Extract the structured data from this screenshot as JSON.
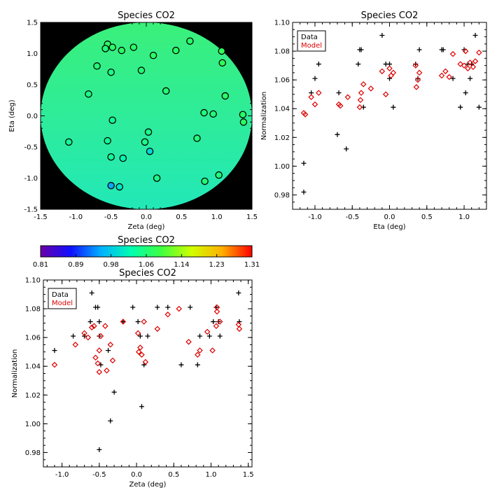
{
  "chart_data": [
    {
      "type": "scatter",
      "title": "Species CO2",
      "xlabel": "Zeta (deg)",
      "ylabel": "Eta (deg)",
      "xlim": [
        -1.5,
        1.5
      ],
      "ylim": [
        -1.5,
        1.5
      ],
      "xticks": [
        "-1.5",
        "-1.0",
        "-0.5",
        "0.0",
        "0.5",
        "1.0",
        "1.5"
      ],
      "yticks": [
        "-1.5",
        "-1.0",
        "-0.5",
        "0.0",
        "0.5",
        "1.0",
        "1.5"
      ],
      "background": "#000000",
      "field": {
        "shape": "circle",
        "radius_deg": 1.5,
        "color_top": "#3af07a",
        "color_bottom": "#22e8b8"
      },
      "points": [
        {
          "x": -0.55,
          "y": 1.15,
          "v": 1.07
        },
        {
          "x": -0.48,
          "y": 1.1,
          "v": 1.07
        },
        {
          "x": -0.58,
          "y": 1.08,
          "v": 1.06
        },
        {
          "x": -0.35,
          "y": 1.05,
          "v": 1.07
        },
        {
          "x": -0.18,
          "y": 1.1,
          "v": 1.07
        },
        {
          "x": 0.1,
          "y": 0.97,
          "v": 1.07
        },
        {
          "x": 0.42,
          "y": 1.05,
          "v": 1.07
        },
        {
          "x": 0.62,
          "y": 1.2,
          "v": 1.07
        },
        {
          "x": 1.07,
          "y": 1.04,
          "v": 1.08
        },
        {
          "x": 1.08,
          "y": 0.85,
          "v": 1.08
        },
        {
          "x": -0.7,
          "y": 0.8,
          "v": 1.06
        },
        {
          "x": -0.5,
          "y": 0.7,
          "v": 1.05
        },
        {
          "x": -0.07,
          "y": 0.73,
          "v": 1.06
        },
        {
          "x": 1.12,
          "y": 0.32,
          "v": 1.07
        },
        {
          "x": -0.82,
          "y": 0.35,
          "v": 1.05
        },
        {
          "x": 0.28,
          "y": 0.4,
          "v": 1.06
        },
        {
          "x": 0.82,
          "y": 0.05,
          "v": 1.06
        },
        {
          "x": 0.95,
          "y": 0.03,
          "v": 1.06
        },
        {
          "x": 1.37,
          "y": 0.02,
          "v": 1.07
        },
        {
          "x": 1.38,
          "y": -0.1,
          "v": 1.07
        },
        {
          "x": -0.48,
          "y": -0.07,
          "v": 1.04
        },
        {
          "x": 0.03,
          "y": -0.26,
          "v": 1.05
        },
        {
          "x": -1.1,
          "y": -0.42,
          "v": 1.04
        },
        {
          "x": -0.55,
          "y": -0.4,
          "v": 1.04
        },
        {
          "x": -0.02,
          "y": -0.42,
          "v": 1.05
        },
        {
          "x": 0.72,
          "y": -0.36,
          "v": 1.06
        },
        {
          "x": 0.05,
          "y": -0.57,
          "v": 0.99
        },
        {
          "x": -0.5,
          "y": -0.66,
          "v": 1.04
        },
        {
          "x": -0.33,
          "y": -0.68,
          "v": 1.02
        },
        {
          "x": 0.15,
          "y": -1.0,
          "v": 1.05
        },
        {
          "x": 0.83,
          "y": -1.05,
          "v": 1.06
        },
        {
          "x": 1.03,
          "y": -0.95,
          "v": 1.06
        },
        {
          "x": -0.5,
          "y": -1.12,
          "v": 0.95
        },
        {
          "x": -0.38,
          "y": -1.14,
          "v": 1.0
        }
      ]
    },
    {
      "type": "scatter",
      "title": "Species CO2",
      "xlabel": "Eta (deg)",
      "ylabel": "Normalization",
      "xlim": [
        -1.3,
        1.3
      ],
      "ylim": [
        0.97,
        1.1
      ],
      "xticks": [
        "-1.0",
        "-0.5",
        "0.0",
        "0.5",
        "1.0"
      ],
      "yticks": [
        "0.98",
        "1.00",
        "1.02",
        "1.04",
        "1.06",
        "1.08",
        "1.10"
      ],
      "legend_position": "top-left",
      "series": [
        {
          "name": "Data",
          "marker": "plus",
          "color": "#000000",
          "points": [
            [
              -1.15,
              0.982
            ],
            [
              -1.15,
              1.002
            ],
            [
              -1.05,
              1.051
            ],
            [
              -1.0,
              1.061
            ],
            [
              -0.95,
              1.071
            ],
            [
              -0.7,
              1.022
            ],
            [
              -0.68,
              1.051
            ],
            [
              -0.58,
              1.012
            ],
            [
              -0.42,
              1.071
            ],
            [
              -0.4,
              1.081
            ],
            [
              -0.38,
              1.081
            ],
            [
              -0.35,
              1.041
            ],
            [
              -0.1,
              1.091
            ],
            [
              -0.05,
              1.071
            ],
            [
              0.0,
              1.071
            ],
            [
              0.0,
              1.061
            ],
            [
              0.05,
              1.041
            ],
            [
              0.35,
              1.071
            ],
            [
              0.38,
              1.061
            ],
            [
              0.4,
              1.081
            ],
            [
              0.7,
              1.081
            ],
            [
              0.72,
              1.081
            ],
            [
              0.85,
              1.061
            ],
            [
              0.95,
              1.041
            ],
            [
              1.0,
              1.081
            ],
            [
              1.02,
              1.051
            ],
            [
              1.05,
              1.071
            ],
            [
              1.08,
              1.061
            ],
            [
              1.1,
              1.071
            ],
            [
              1.15,
              1.091
            ],
            [
              1.2,
              1.041
            ]
          ]
        },
        {
          "name": "Model",
          "marker": "diamond",
          "color": "#dd0000",
          "points": [
            [
              -1.15,
              1.037
            ],
            [
              -1.13,
              1.036
            ],
            [
              -1.05,
              1.048
            ],
            [
              -1.0,
              1.043
            ],
            [
              -0.95,
              1.051
            ],
            [
              -0.68,
              1.043
            ],
            [
              -0.66,
              1.042
            ],
            [
              -0.56,
              1.048
            ],
            [
              -0.4,
              1.041
            ],
            [
              -0.39,
              1.046
            ],
            [
              -0.38,
              1.051
            ],
            [
              -0.35,
              1.057
            ],
            [
              -0.25,
              1.054
            ],
            [
              -0.1,
              1.066
            ],
            [
              -0.05,
              1.05
            ],
            [
              0.0,
              1.068
            ],
            [
              0.02,
              1.063
            ],
            [
              0.05,
              1.065
            ],
            [
              0.35,
              1.07
            ],
            [
              0.36,
              1.055
            ],
            [
              0.38,
              1.06
            ],
            [
              0.4,
              1.065
            ],
            [
              0.7,
              1.063
            ],
            [
              0.75,
              1.066
            ],
            [
              0.8,
              1.062
            ],
            [
              0.85,
              1.078
            ],
            [
              0.95,
              1.071
            ],
            [
              1.0,
              1.07
            ],
            [
              1.02,
              1.08
            ],
            [
              1.05,
              1.068
            ],
            [
              1.08,
              1.072
            ],
            [
              1.12,
              1.069
            ],
            [
              1.15,
              1.073
            ],
            [
              1.2,
              1.079
            ]
          ]
        }
      ]
    },
    {
      "type": "colorbar",
      "title": "Species CO2",
      "range": [
        0.81,
        1.31
      ],
      "tick_labels": [
        "0.81",
        "0.89",
        "0.98",
        "1.06",
        "1.14",
        "1.23",
        "1.31"
      ],
      "colormap": [
        "#6a00a8",
        "#1010ff",
        "#00b0ff",
        "#00ffb0",
        "#40ff40",
        "#d0ff00",
        "#ffb000",
        "#ff0000"
      ]
    },
    {
      "type": "scatter",
      "title": "Species CO2",
      "xlabel": "Zeta (deg)",
      "ylabel": "Normalization",
      "xlim": [
        -1.25,
        1.55
      ],
      "ylim": [
        0.97,
        1.1
      ],
      "xticks": [
        "-1.0",
        "-0.5",
        "0.0",
        "0.5",
        "1.0",
        "1.5"
      ],
      "yticks": [
        "0.98",
        "1.00",
        "1.02",
        "1.04",
        "1.06",
        "1.08",
        "1.10"
      ],
      "legend_position": "top-left",
      "series": [
        {
          "name": "Data",
          "marker": "plus",
          "color": "#000000",
          "points": [
            [
              -1.1,
              1.051
            ],
            [
              -0.85,
              1.061
            ],
            [
              -0.7,
              1.061
            ],
            [
              -0.62,
              1.071
            ],
            [
              -0.6,
              1.091
            ],
            [
              -0.55,
              1.081
            ],
            [
              -0.52,
              1.081
            ],
            [
              -0.5,
              1.071
            ],
            [
              -0.5,
              1.061
            ],
            [
              -0.48,
              1.041
            ],
            [
              -0.5,
              0.982
            ],
            [
              -0.38,
              1.051
            ],
            [
              -0.35,
              1.002
            ],
            [
              -0.3,
              1.022
            ],
            [
              -0.18,
              1.071
            ],
            [
              -0.05,
              1.081
            ],
            [
              0.02,
              1.071
            ],
            [
              0.05,
              1.061
            ],
            [
              0.07,
              1.012
            ],
            [
              0.1,
              1.041
            ],
            [
              0.15,
              1.061
            ],
            [
              0.28,
              1.081
            ],
            [
              0.42,
              1.081
            ],
            [
              0.6,
              1.041
            ],
            [
              0.72,
              1.081
            ],
            [
              0.82,
              1.041
            ],
            [
              0.85,
              1.061
            ],
            [
              0.98,
              1.061
            ],
            [
              1.03,
              1.071
            ],
            [
              1.07,
              1.081
            ],
            [
              1.1,
              1.071
            ],
            [
              1.12,
              1.061
            ],
            [
              1.37,
              1.091
            ],
            [
              1.38,
              1.071
            ]
          ]
        },
        {
          "name": "Model",
          "marker": "diamond",
          "color": "#dd0000",
          "points": [
            [
              -1.1,
              1.041
            ],
            [
              -0.82,
              1.055
            ],
            [
              -0.7,
              1.063
            ],
            [
              -0.65,
              1.06
            ],
            [
              -0.6,
              1.067
            ],
            [
              -0.57,
              1.068
            ],
            [
              -0.55,
              1.046
            ],
            [
              -0.52,
              1.042
            ],
            [
              -0.5,
              1.051
            ],
            [
              -0.5,
              1.036
            ],
            [
              -0.48,
              1.061
            ],
            [
              -0.42,
              1.068
            ],
            [
              -0.4,
              1.037
            ],
            [
              -0.35,
              1.055
            ],
            [
              -0.32,
              1.044
            ],
            [
              -0.18,
              1.071
            ],
            [
              0.02,
              1.063
            ],
            [
              0.03,
              1.05
            ],
            [
              0.05,
              1.053
            ],
            [
              0.07,
              1.048
            ],
            [
              0.1,
              1.071
            ],
            [
              0.12,
              1.043
            ],
            [
              0.28,
              1.066
            ],
            [
              0.42,
              1.076
            ],
            [
              0.57,
              1.08
            ],
            [
              0.7,
              1.057
            ],
            [
              0.82,
              1.048
            ],
            [
              0.85,
              1.051
            ],
            [
              0.95,
              1.064
            ],
            [
              1.02,
              1.051
            ],
            [
              1.07,
              1.068
            ],
            [
              1.08,
              1.078
            ],
            [
              1.08,
              1.081
            ],
            [
              1.12,
              1.071
            ],
            [
              1.37,
              1.069
            ],
            [
              1.38,
              1.066
            ]
          ]
        }
      ]
    }
  ]
}
